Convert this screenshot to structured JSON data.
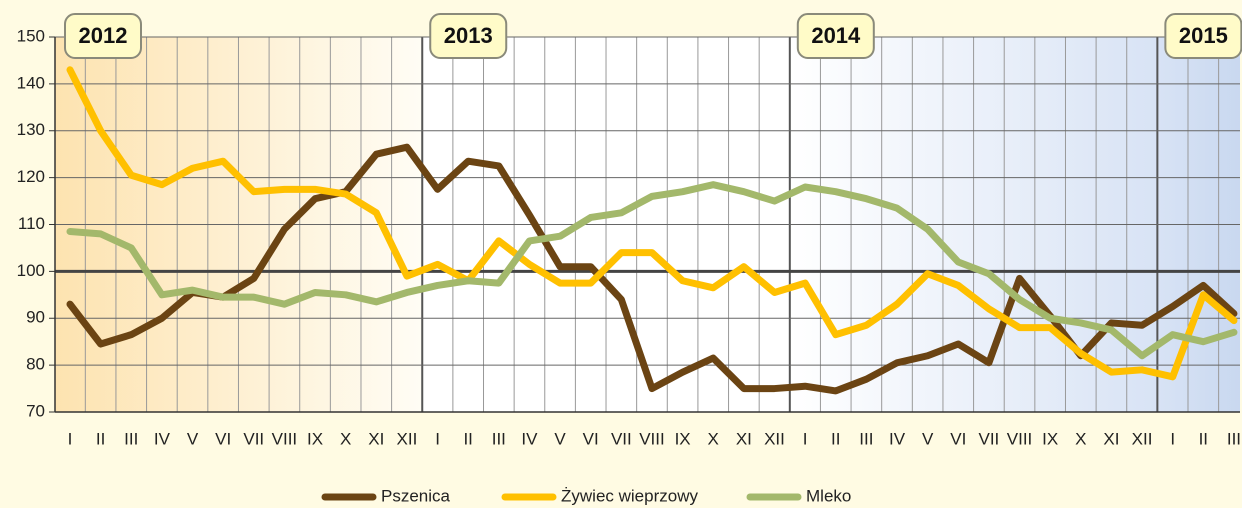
{
  "chart_data": {
    "type": "line",
    "categories": [
      "I",
      "II",
      "III",
      "IV",
      "V",
      "VI",
      "VII",
      "VIII",
      "IX",
      "X",
      "XI",
      "XII",
      "I",
      "II",
      "III",
      "IV",
      "V",
      "VI",
      "VII",
      "VIII",
      "IX",
      "X",
      "XI",
      "XII",
      "I",
      "II",
      "III",
      "IV",
      "V",
      "VI",
      "VII",
      "VIII",
      "IX",
      "X",
      "XI",
      "XII",
      "I",
      "II",
      "III"
    ],
    "years": [
      "2012",
      "2013",
      "2014",
      "2015"
    ],
    "series": [
      {
        "name": "Pszenica",
        "color": "#6b4413",
        "values": [
          93,
          84.5,
          86.5,
          90,
          95.5,
          94.5,
          98.5,
          109,
          115.5,
          117,
          125,
          126.5,
          117.5,
          123.5,
          122.5,
          112,
          101,
          101,
          94,
          75,
          78.5,
          81.5,
          75,
          75,
          75.5,
          74.5,
          77,
          80.5,
          82,
          84.5,
          80.5,
          98.5,
          90.5,
          82,
          89,
          88.5,
          92.5,
          97,
          91
        ]
      },
      {
        "name": "Żywiec wieprzowy",
        "color": "#ffc000",
        "values": [
          143,
          130,
          120.5,
          118.5,
          122,
          123.5,
          117,
          117.5,
          117.5,
          116.5,
          112.5,
          99,
          101.5,
          98,
          106.5,
          101.5,
          97.5,
          97.5,
          104,
          104,
          98,
          96.5,
          101,
          95.5,
          97.5,
          86.5,
          88.5,
          93,
          99.5,
          97,
          92,
          88,
          88,
          82.5,
          78.5,
          79,
          77.5,
          95,
          89.5
        ]
      },
      {
        "name": "Mleko",
        "color": "#a3b86b",
        "values": [
          108.5,
          108,
          105,
          95,
          96,
          94.5,
          94.5,
          93,
          95.5,
          95,
          93.5,
          95.5,
          97,
          98,
          97.5,
          106.5,
          107.5,
          111.5,
          112.5,
          116,
          117,
          118.5,
          117,
          115,
          118,
          117,
          115.5,
          113.5,
          109,
          102,
          99.5,
          94,
          90,
          89,
          87.5,
          82,
          86.5,
          85,
          87
        ]
      }
    ],
    "ylim": [
      70,
      150
    ],
    "yticks": [
      70,
      80,
      90,
      100,
      110,
      120,
      130,
      140,
      150
    ],
    "reference_line": 100,
    "grid": true
  }
}
